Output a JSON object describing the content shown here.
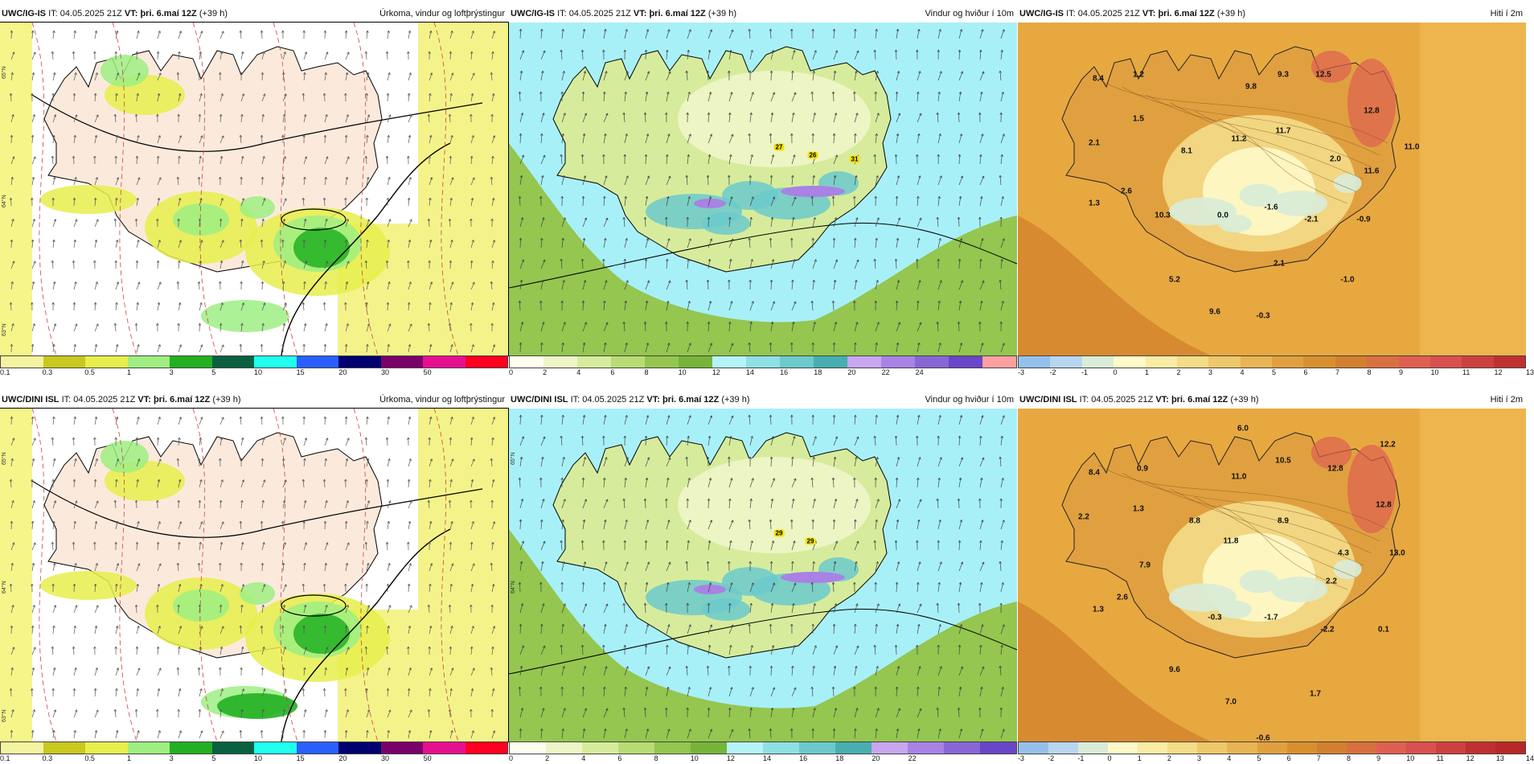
{
  "panels": [
    {
      "id": "p1",
      "model": "UWC/IG-IS",
      "it_label": "IT:",
      "it_value": "04.05.2025 21Z",
      "vt_label": "VT:",
      "vt_value": "þri. 6.maí 12Z",
      "lead": "(+39 h)",
      "field": "Úrkoma, vindur og loftþrýstingur",
      "colors": [
        "#f4f4a0",
        "#c8c81e",
        "#e6ef4b",
        "#9eee82",
        "#22b022",
        "#0a6040",
        "#20fff0",
        "#2a5fff",
        "#000070",
        "#7a006a",
        "#e60f90",
        "#ff0020"
      ],
      "ticks": [
        "0.1",
        "0.3",
        "0.5",
        "1",
        "3",
        "5",
        "10",
        "15",
        "20",
        "30",
        "50"
      ],
      "lat_labels": [
        "65°N",
        "64°N",
        "63°N"
      ],
      "map_labels": [],
      "gust_labels": []
    },
    {
      "id": "p2",
      "model": "UWC/IG-IS",
      "it_label": "IT:",
      "it_value": "04.05.2025 21Z",
      "vt_label": "VT:",
      "vt_value": "þri. 6.maí 12Z",
      "lead": "(+39 h)",
      "field": "Vindur og hviður í 10m",
      "colors": [
        "#fffff0",
        "#eef6c8",
        "#d6ec9c",
        "#b8dc74",
        "#94c650",
        "#76b43a",
        "#b4f4f8",
        "#8ee0e4",
        "#6ccacc",
        "#48aeb0",
        "#c8a6f0",
        "#a882e4",
        "#8866d6",
        "#6a46c8",
        "#ffa0a0"
      ],
      "ticks": [
        "0",
        "2",
        "4",
        "6",
        "8",
        "10",
        "12",
        "14",
        "16",
        "18",
        "20",
        "22",
        "24"
      ],
      "lat_labels": [],
      "map_labels": [],
      "gust_labels": [
        "27",
        "26",
        "31"
      ]
    },
    {
      "id": "p3",
      "model": "UWC/IG-IS",
      "it_label": "IT:",
      "it_value": "04.05.2025 21Z",
      "vt_label": "VT:",
      "vt_value": "þri. 6.maí 12Z",
      "lead": "(+39 h)",
      "field": "Hiti í 2m",
      "colors": [
        "#96c0ec",
        "#b8d6f0",
        "#d8ecd8",
        "#fffac8",
        "#faeca4",
        "#f4dc88",
        "#eec86a",
        "#e8b454",
        "#e0a040",
        "#d8902e",
        "#d28030",
        "#d87040",
        "#de6050",
        "#d85050",
        "#cc4040",
        "#c03030"
      ],
      "ticks": [
        "-3",
        "-2",
        "-1",
        "0",
        "1",
        "2",
        "3",
        "4",
        "5",
        "6",
        "7",
        "8",
        "9",
        "10",
        "11",
        "12",
        "13"
      ],
      "lat_labels": [],
      "map_labels": [
        "8.4",
        "1.2",
        "2.1",
        "1.5",
        "8.1",
        "9.8",
        "9.3",
        "12.5",
        "12.8",
        "11.0",
        "11.2",
        "11.7",
        "2.0",
        "11.6",
        "1.3",
        "2.6",
        "10.3",
        "0.0",
        "-1.6",
        "-2.1",
        "-0.9",
        "2.1",
        "5.2",
        "-1.0",
        "9.6",
        "-0.3"
      ],
      "gust_labels": []
    },
    {
      "id": "p4",
      "model": "UWC/DINI ISL",
      "it_label": "IT:",
      "it_value": "04.05.2025 21Z",
      "vt_label": "VT:",
      "vt_value": "þri. 6.maí 12Z",
      "lead": "(+39 h)",
      "field": "Úrkoma, vindur og loftþrýstingur",
      "colors": [
        "#f4f4a0",
        "#c8c81e",
        "#e6ef4b",
        "#9eee82",
        "#22b022",
        "#0a6040",
        "#20fff0",
        "#2a5fff",
        "#000070",
        "#7a006a",
        "#e60f90",
        "#ff0020"
      ],
      "ticks": [
        "0.1",
        "0.3",
        "0.5",
        "1",
        "3",
        "5",
        "10",
        "15",
        "20",
        "30",
        "50"
      ],
      "lat_labels": [
        "65°N",
        "64°N",
        "63°N"
      ],
      "map_labels": [],
      "gust_labels": []
    },
    {
      "id": "p5",
      "model": "UWC/DINI ISL",
      "it_label": "IT:",
      "it_value": "04.05.2025 21Z",
      "vt_label": "VT:",
      "vt_value": "þri. 6.maí 12Z",
      "lead": "(+39 h)",
      "field": "Vindur og hviður í 10m",
      "colors": [
        "#fffff0",
        "#eef6c8",
        "#d6ec9c",
        "#b8dc74",
        "#94c650",
        "#76b43a",
        "#b4f4f8",
        "#8ee0e4",
        "#6ccacc",
        "#48aeb0",
        "#c8a6f0",
        "#a882e4",
        "#8866d6",
        "#6a46c8"
      ],
      "ticks": [
        "0",
        "2",
        "4",
        "6",
        "8",
        "10",
        "12",
        "14",
        "16",
        "18",
        "20",
        "22"
      ],
      "lat_labels": [
        "65°N",
        "64°N"
      ],
      "map_labels": [],
      "gust_labels": [
        "29",
        "29"
      ]
    },
    {
      "id": "p6",
      "model": "UWC/DINI ISL",
      "it_label": "IT:",
      "it_value": "04.05.2025 21Z",
      "vt_label": "VT:",
      "vt_value": "þri. 6.maí 12Z",
      "lead": "(+39 h)",
      "field": "Hiti í 2m",
      "colors": [
        "#96c0ec",
        "#b8d6f0",
        "#d8ecd8",
        "#fffac8",
        "#faeca4",
        "#f4dc88",
        "#eec86a",
        "#e8b454",
        "#e0a040",
        "#d8902e",
        "#d28030",
        "#d87040",
        "#de6050",
        "#d85050",
        "#cc4040",
        "#c03030",
        "#b82828"
      ],
      "ticks": [
        "-3",
        "-2",
        "-1",
        "0",
        "1",
        "2",
        "3",
        "4",
        "5",
        "6",
        "7",
        "8",
        "9",
        "10",
        "11",
        "12",
        "13",
        "14"
      ],
      "lat_labels": [],
      "map_labels": [
        "6.0",
        "8.4",
        "0.9",
        "10.5",
        "12.8",
        "12.2",
        "2.2",
        "1.3",
        "11.0",
        "8.8",
        "8.9",
        "12.8",
        "11.8",
        "4.3",
        "13.0",
        "7.9",
        "2.2",
        "2.6",
        "1.3",
        "-0.3",
        "-1.7",
        "-2.2",
        "0.1",
        "9.6",
        "7.0",
        "1.7",
        "-0.6"
      ],
      "gust_labels": []
    }
  ]
}
